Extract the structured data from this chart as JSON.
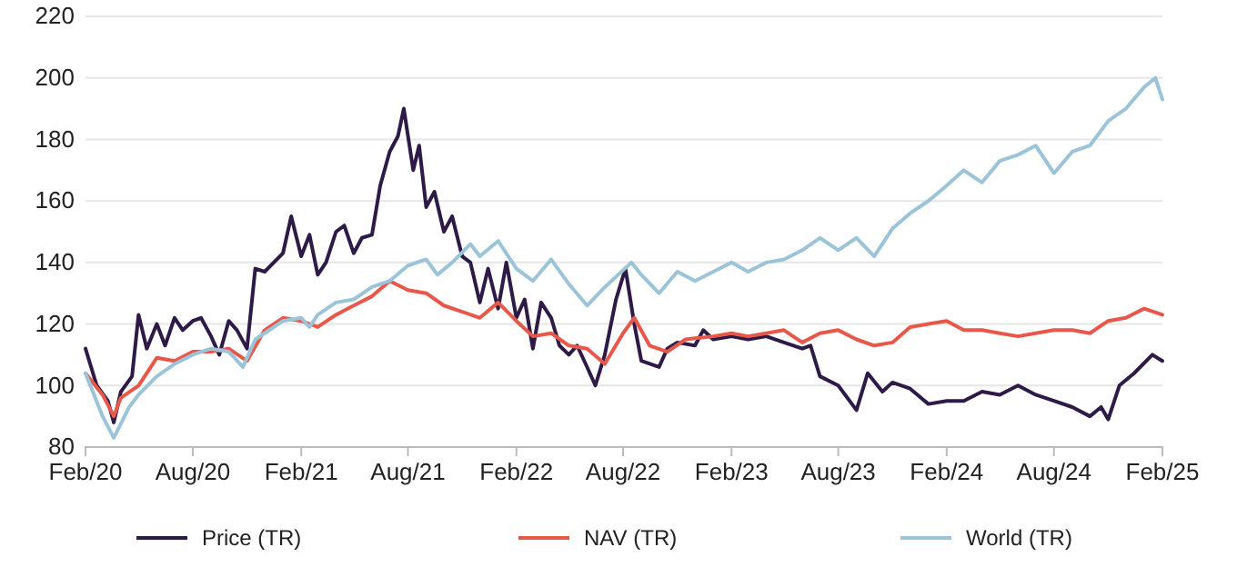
{
  "chart_data": {
    "type": "line",
    "xlim": [
      "2020-02-01",
      "2025-02-01"
    ],
    "xticks": [
      {
        "value": "2020-02-01",
        "label": "Feb/20"
      },
      {
        "value": "2020-08-01",
        "label": "Aug/20"
      },
      {
        "value": "2021-02-01",
        "label": "Feb/21"
      },
      {
        "value": "2021-08-01",
        "label": "Aug/21"
      },
      {
        "value": "2022-02-01",
        "label": "Feb/22"
      },
      {
        "value": "2022-08-01",
        "label": "Aug/22"
      },
      {
        "value": "2023-02-01",
        "label": "Feb/23"
      },
      {
        "value": "2023-08-01",
        "label": "Aug/23"
      },
      {
        "value": "2024-02-01",
        "label": "Feb/24"
      },
      {
        "value": "2024-08-01",
        "label": "Aug/24"
      },
      {
        "value": "2025-02-01",
        "label": "Feb/25"
      }
    ],
    "ylim": [
      80,
      220
    ],
    "yticks": [
      80,
      100,
      120,
      140,
      160,
      180,
      200,
      220
    ],
    "grid": "y",
    "legend": "bottom",
    "marker": "none",
    "line_style": "solid",
    "series": [
      {
        "name": "Price (TR)",
        "color": "#2e1a47",
        "x": [
          "2020-02-01",
          "2020-02-20",
          "2020-03-10",
          "2020-03-20",
          "2020-04-01",
          "2020-04-20",
          "2020-05-01",
          "2020-05-15",
          "2020-06-01",
          "2020-06-15",
          "2020-07-01",
          "2020-07-15",
          "2020-08-01",
          "2020-08-15",
          "2020-09-01",
          "2020-09-15",
          "2020-10-01",
          "2020-10-15",
          "2020-11-01",
          "2020-11-15",
          "2020-12-01",
          "2021-01-01",
          "2021-01-15",
          "2021-02-01",
          "2021-02-15",
          "2021-03-01",
          "2021-03-15",
          "2021-04-01",
          "2021-04-15",
          "2021-05-01",
          "2021-05-15",
          "2021-06-01",
          "2021-06-15",
          "2021-07-01",
          "2021-07-15",
          "2021-07-25",
          "2021-08-10",
          "2021-08-20",
          "2021-09-01",
          "2021-09-15",
          "2021-10-01",
          "2021-10-15",
          "2021-11-01",
          "2021-11-15",
          "2021-12-01",
          "2021-12-15",
          "2022-01-01",
          "2022-01-15",
          "2022-02-01",
          "2022-02-15",
          "2022-03-01",
          "2022-03-15",
          "2022-04-01",
          "2022-04-15",
          "2022-05-01",
          "2022-05-15",
          "2022-06-01",
          "2022-06-15",
          "2022-07-01",
          "2022-07-20",
          "2022-08-05",
          "2022-08-20",
          "2022-09-01",
          "2022-10-01",
          "2022-10-15",
          "2022-11-01",
          "2022-12-01",
          "2022-12-15",
          "2023-01-01",
          "2023-02-01",
          "2023-03-01",
          "2023-04-01",
          "2023-05-01",
          "2023-06-01",
          "2023-06-15",
          "2023-07-01",
          "2023-08-01",
          "2023-09-01",
          "2023-09-20",
          "2023-10-15",
          "2023-11-01",
          "2023-12-01",
          "2024-01-01",
          "2024-02-01",
          "2024-03-01",
          "2024-04-01",
          "2024-05-01",
          "2024-06-01",
          "2024-07-01",
          "2024-08-01",
          "2024-09-01",
          "2024-10-01",
          "2024-10-20",
          "2024-11-01",
          "2024-11-20",
          "2024-12-15",
          "2025-01-15",
          "2025-02-01"
        ],
        "values": [
          112,
          100,
          95,
          88,
          98,
          103,
          123,
          112,
          120,
          113,
          122,
          118,
          121,
          122,
          116,
          110,
          121,
          118,
          112,
          138,
          137,
          143,
          155,
          142,
          149,
          136,
          140,
          150,
          152,
          143,
          148,
          149,
          165,
          176,
          181,
          190,
          170,
          178,
          158,
          163,
          150,
          155,
          142,
          140,
          127,
          138,
          125,
          140,
          122,
          128,
          112,
          127,
          122,
          113,
          110,
          113,
          106,
          100,
          110,
          128,
          138,
          120,
          108,
          106,
          112,
          114,
          113,
          118,
          115,
          116,
          115,
          116,
          114,
          112,
          113,
          103,
          100,
          92,
          104,
          98,
          101,
          99,
          94,
          95,
          95,
          98,
          97,
          100,
          97,
          95,
          93,
          90,
          93,
          89,
          100,
          104,
          110,
          108
        ]
      },
      {
        "name": "NAV (TR)",
        "color": "#e8584a",
        "x": [
          "2020-02-01",
          "2020-03-01",
          "2020-03-20",
          "2020-04-01",
          "2020-05-01",
          "2020-06-01",
          "2020-07-01",
          "2020-08-01",
          "2020-09-01",
          "2020-10-01",
          "2020-11-01",
          "2020-12-01",
          "2021-01-01",
          "2021-02-01",
          "2021-03-01",
          "2021-04-01",
          "2021-05-01",
          "2021-06-01",
          "2021-07-01",
          "2021-08-01",
          "2021-09-01",
          "2021-10-01",
          "2021-11-01",
          "2021-12-01",
          "2022-01-01",
          "2022-02-01",
          "2022-03-01",
          "2022-04-01",
          "2022-05-01",
          "2022-06-01",
          "2022-07-01",
          "2022-08-01",
          "2022-08-20",
          "2022-09-15",
          "2022-10-15",
          "2022-11-15",
          "2023-01-01",
          "2023-02-01",
          "2023-03-01",
          "2023-04-01",
          "2023-05-01",
          "2023-06-01",
          "2023-07-01",
          "2023-08-01",
          "2023-09-01",
          "2023-10-01",
          "2023-11-01",
          "2023-12-01",
          "2024-01-01",
          "2024-02-01",
          "2024-03-01",
          "2024-04-01",
          "2024-05-01",
          "2024-06-01",
          "2024-07-01",
          "2024-08-01",
          "2024-09-01",
          "2024-10-01",
          "2024-11-01",
          "2024-12-01",
          "2025-01-01",
          "2025-02-01"
        ],
        "values": [
          104,
          97,
          90,
          96,
          100,
          109,
          108,
          111,
          111,
          112,
          108,
          118,
          122,
          121,
          119,
          123,
          126,
          129,
          134,
          131,
          130,
          126,
          124,
          122,
          127,
          121,
          116,
          117,
          113,
          112,
          107,
          117,
          122,
          113,
          111,
          115,
          116,
          117,
          116,
          117,
          118,
          114,
          117,
          118,
          115,
          113,
          114,
          119,
          120,
          121,
          118,
          118,
          117,
          116,
          117,
          118,
          118,
          117,
          121,
          122,
          125,
          123
        ]
      },
      {
        "name": "World (TR)",
        "color": "#9cc4d9",
        "x": [
          "2020-02-01",
          "2020-03-01",
          "2020-03-20",
          "2020-04-15",
          "2020-05-01",
          "2020-06-01",
          "2020-07-01",
          "2020-08-01",
          "2020-09-01",
          "2020-10-01",
          "2020-10-25",
          "2020-11-15",
          "2020-12-01",
          "2021-01-01",
          "2021-02-01",
          "2021-02-15",
          "2021-03-01",
          "2021-04-01",
          "2021-05-01",
          "2021-06-01",
          "2021-07-01",
          "2021-08-01",
          "2021-09-01",
          "2021-09-20",
          "2021-10-15",
          "2021-11-15",
          "2021-12-01",
          "2022-01-01",
          "2022-02-01",
          "2022-03-01",
          "2022-04-01",
          "2022-05-01",
          "2022-06-01",
          "2022-07-01",
          "2022-08-15",
          "2022-09-01",
          "2022-10-01",
          "2022-11-01",
          "2022-12-01",
          "2023-01-01",
          "2023-02-01",
          "2023-03-01",
          "2023-04-01",
          "2023-05-01",
          "2023-06-01",
          "2023-07-01",
          "2023-08-01",
          "2023-09-01",
          "2023-10-01",
          "2023-11-01",
          "2023-12-01",
          "2024-01-01",
          "2024-02-01",
          "2024-03-01",
          "2024-04-01",
          "2024-05-01",
          "2024-06-01",
          "2024-07-01",
          "2024-08-01",
          "2024-09-01",
          "2024-10-01",
          "2024-11-01",
          "2024-12-01",
          "2025-01-01",
          "2025-01-20",
          "2025-02-01"
        ],
        "values": [
          104,
          90,
          83,
          93,
          97,
          103,
          107,
          110,
          112,
          111,
          106,
          115,
          117,
          121,
          122,
          119,
          123,
          127,
          128,
          132,
          134,
          139,
          141,
          136,
          140,
          146,
          142,
          147,
          138,
          134,
          141,
          133,
          126,
          132,
          140,
          136,
          130,
          137,
          134,
          137,
          140,
          137,
          140,
          141,
          144,
          148,
          144,
          148,
          142,
          151,
          156,
          160,
          165,
          170,
          166,
          173,
          175,
          178,
          169,
          176,
          178,
          186,
          190,
          197,
          200,
          193
        ]
      }
    ]
  }
}
